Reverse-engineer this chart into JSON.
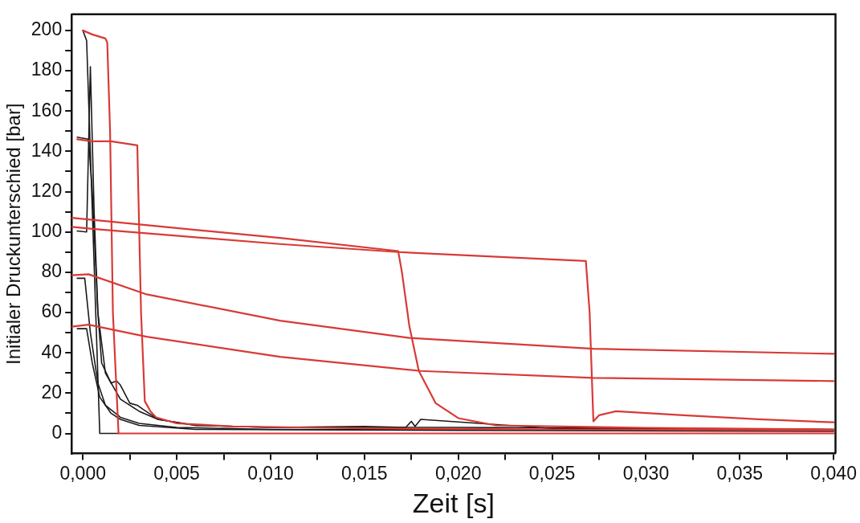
{
  "chart_data": {
    "type": "line",
    "xlabel": "Zeit [s]",
    "ylabel": "Initialer Druckunterschied [bar]",
    "xlim": [
      -0.0006,
      0.0401
    ],
    "ylim": [
      -10,
      208
    ],
    "xticks": [
      {
        "value": 0,
        "label": "0,000"
      },
      {
        "value": 0.0025,
        "label": null
      },
      {
        "value": 0.005,
        "label": "0,005"
      },
      {
        "value": 0.0075,
        "label": null
      },
      {
        "value": 0.01,
        "label": "0,010"
      },
      {
        "value": 0.0125,
        "label": null
      },
      {
        "value": 0.015,
        "label": "0,015"
      },
      {
        "value": 0.0175,
        "label": null
      },
      {
        "value": 0.02,
        "label": "0,020"
      },
      {
        "value": 0.0225,
        "label": null
      },
      {
        "value": 0.025,
        "label": "0,025"
      },
      {
        "value": 0.0275,
        "label": null
      },
      {
        "value": 0.03,
        "label": "0,030"
      },
      {
        "value": 0.0325,
        "label": null
      },
      {
        "value": 0.035,
        "label": "0,035"
      },
      {
        "value": 0.0375,
        "label": null
      },
      {
        "value": 0.04,
        "label": "0,040"
      }
    ],
    "yticks": [
      0,
      {
        "value": 10,
        "label": null
      },
      20,
      {
        "value": 30,
        "label": null
      },
      40,
      {
        "value": 50,
        "label": null
      },
      60,
      {
        "value": 70,
        "label": null
      },
      80,
      {
        "value": 90,
        "label": null
      },
      100,
      {
        "value": 110,
        "label": null
      },
      120,
      {
        "value": 130,
        "label": null
      },
      140,
      {
        "value": 150,
        "label": null
      },
      160,
      {
        "value": 170,
        "label": null
      },
      180,
      {
        "value": 190,
        "label": null
      },
      200
    ],
    "grid": false,
    "legend": false,
    "marker": "none",
    "line_style": "solid",
    "series": [
      {
        "color": "#d83a36",
        "x": [
          0,
          0.0005,
          0.0012,
          0.0013,
          0.00145,
          0.0016,
          0.0019,
          0.04
        ],
        "values": [
          200,
          198,
          196,
          194,
          150,
          60,
          0,
          0
        ]
      },
      {
        "color": "#d83a36",
        "x": [
          -0.0003,
          0.0005,
          0.0015,
          0.0029,
          0.0031,
          0.0033,
          0.0036,
          0.0039,
          0.005,
          0.008,
          0.015,
          0.025,
          0.04
        ],
        "values": [
          146,
          145,
          145,
          143,
          60,
          16,
          11,
          8,
          5,
          3.5,
          2.5,
          2,
          1.5
        ]
      },
      {
        "color": "#d83a36",
        "x": [
          -0.0006,
          0.0005,
          0.0105,
          0.0168,
          0.017,
          0.0174,
          0.0179,
          0.0188,
          0.02,
          0.022,
          0.03,
          0.04
        ],
        "values": [
          107,
          106,
          97,
          90.5,
          80,
          53,
          31,
          15,
          7.6,
          4,
          2.8,
          2
        ]
      },
      {
        "color": "#d83a36",
        "x": [
          -0.0006,
          0.0005,
          0.0105,
          0.0168,
          0.0268,
          0.027,
          0.0272,
          0.0275,
          0.0284,
          0.032,
          0.036,
          0.04
        ],
        "values": [
          102.5,
          101.5,
          94,
          90,
          85.6,
          60,
          6,
          9,
          11,
          9,
          7,
          5.5
        ]
      },
      {
        "color": "#d83a36",
        "x": [
          -0.0006,
          0.0003,
          0.0034,
          0.0105,
          0.0174,
          0.0272,
          0.04
        ],
        "values": [
          78.5,
          79,
          69,
          56,
          47.4,
          42,
          39.5
        ]
      },
      {
        "color": "#d83a36",
        "x": [
          -0.0006,
          0.0003,
          0.0034,
          0.0105,
          0.018,
          0.0272,
          0.04
        ],
        "values": [
          53,
          54,
          48,
          38,
          31,
          27.6,
          26
        ]
      },
      {
        "color": "#1a1a1a",
        "x": [
          0,
          0.0002,
          0.0009,
          0.0019
        ],
        "values": [
          200,
          195,
          0,
          0
        ]
      },
      {
        "color": "#1a1a1a",
        "x": [
          -0.0003,
          0.0003,
          0.0005,
          0.0008,
          0.001,
          0.0015,
          0.0018,
          0.002,
          0.0025,
          0.0029,
          0.0032,
          0.004,
          0.006,
          0.01,
          0.015,
          0.0172,
          0.0175,
          0.0177,
          0.018,
          0.025,
          0.03,
          0.04
        ],
        "values": [
          147,
          146,
          120,
          60,
          35,
          25,
          26,
          24,
          15,
          14,
          12,
          7,
          4,
          3,
          3.5,
          3,
          6,
          3.5,
          7,
          2.5,
          2,
          1.5
        ]
      },
      {
        "color": "#1a1a1a",
        "x": [
          -0.0003,
          0.0002,
          0.0004,
          0.0006,
          0.0008,
          0.0012,
          0.002,
          0.003,
          0.004,
          0.006,
          0.01,
          0.02,
          0.04
        ],
        "values": [
          100.5,
          100,
          182,
          110,
          60,
          30,
          17,
          11,
          7,
          4,
          3,
          3,
          2
        ]
      },
      {
        "color": "#1a1a1a",
        "x": [
          -0.0003,
          0.0001,
          0.0004,
          0.0008,
          0.0012,
          0.002,
          0.003,
          0.005,
          0.01,
          0.04
        ],
        "values": [
          77,
          77,
          50,
          25,
          14,
          8,
          5,
          3,
          2,
          1.5
        ]
      },
      {
        "color": "#1a1a1a",
        "x": [
          -0.0003,
          0.0002,
          0.0005,
          0.0009,
          0.0015,
          0.002,
          0.003,
          0.006,
          0.02,
          0.04
        ],
        "values": [
          52,
          52,
          35,
          18,
          10,
          7,
          4,
          2,
          1.5,
          1
        ]
      }
    ]
  }
}
